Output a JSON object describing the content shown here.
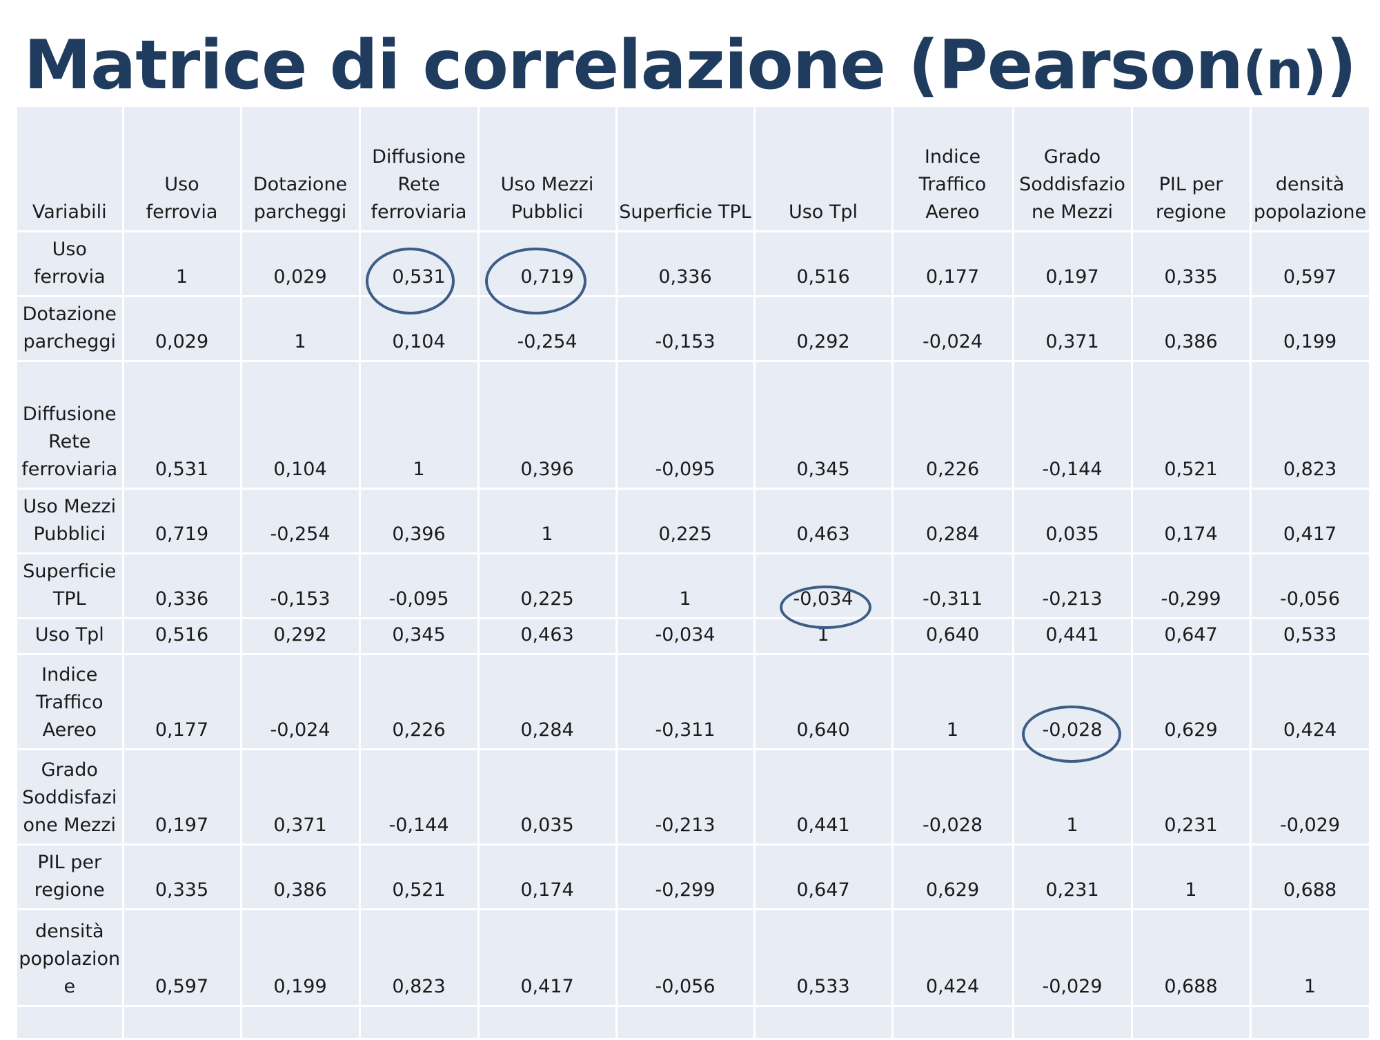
{
  "slide": {
    "title_main": "Matrice di correlazione (Pearson",
    "title_small": "(n)",
    "title_end": ")"
  },
  "table": {
    "corner": "Variabili",
    "headers": [
      "Uso\nferrovia",
      "Dotazione\nparcheggi",
      "Diffusione\nRete\nferroviaria",
      "Uso Mezzi\nPubblici",
      "Superficie TPL",
      "Uso Tpl",
      "Indice\nTraffico\nAereo",
      "Grado\nSoddisfazio\nne Mezzi",
      "PIL per\nregione",
      "densità\npopolazione"
    ],
    "rows": [
      {
        "label": "Uso\nferrovia",
        "values": [
          "1",
          "0,029",
          "0,531",
          "0,719",
          "0,336",
          "0,516",
          "0,177",
          "0,197",
          "0,335",
          "0,597"
        ]
      },
      {
        "label": "Dotazione\nparcheggi",
        "values": [
          "0,029",
          "1",
          "0,104",
          "-0,254",
          "-0,153",
          "0,292",
          "-0,024",
          "0,371",
          "0,386",
          "0,199"
        ]
      },
      {
        "label": "Diffusione\nRete\nferroviaria",
        "values": [
          "0,531",
          "0,104",
          "1",
          "0,396",
          "-0,095",
          "0,345",
          "0,226",
          "-0,144",
          "0,521",
          "0,823"
        ]
      },
      {
        "label": "Uso Mezzi\nPubblici",
        "values": [
          "0,719",
          "-0,254",
          "0,396",
          "1",
          "0,225",
          "0,463",
          "0,284",
          "0,035",
          "0,174",
          "0,417"
        ]
      },
      {
        "label": "Superficie\nTPL",
        "values": [
          "0,336",
          "-0,153",
          "-0,095",
          "0,225",
          "1",
          "-0,034",
          "-0,311",
          "-0,213",
          "-0,299",
          "-0,056"
        ]
      },
      {
        "label": "Uso Tpl",
        "values": [
          "0,516",
          "0,292",
          "0,345",
          "0,463",
          "-0,034",
          "1",
          "0,640",
          "0,441",
          "0,647",
          "0,533"
        ]
      },
      {
        "label": "Indice\nTraffico\nAereo",
        "values": [
          "0,177",
          "-0,024",
          "0,226",
          "0,284",
          "-0,311",
          "0,640",
          "1",
          "-0,028",
          "0,629",
          "0,424"
        ]
      },
      {
        "label": "Grado\nSoddisfazi\none Mezzi",
        "values": [
          "0,197",
          "0,371",
          "-0,144",
          "0,035",
          "-0,213",
          "0,441",
          "-0,028",
          "1",
          "0,231",
          "-0,029"
        ]
      },
      {
        "label": "PIL per\nregione",
        "values": [
          "0,335",
          "0,386",
          "0,521",
          "0,174",
          "-0,299",
          "0,647",
          "0,629",
          "0,231",
          "1",
          "0,688"
        ]
      },
      {
        "label": "densità\npopolazion\ne",
        "values": [
          "0,597",
          "0,199",
          "0,823",
          "0,417",
          "-0,056",
          "0,533",
          "0,424",
          "-0,029",
          "0,688",
          "1"
        ]
      }
    ]
  },
  "colors": {
    "title": "#1f3b5e",
    "cell_background": "#e8edf5",
    "highlight_circle": "#3e5d86"
  }
}
